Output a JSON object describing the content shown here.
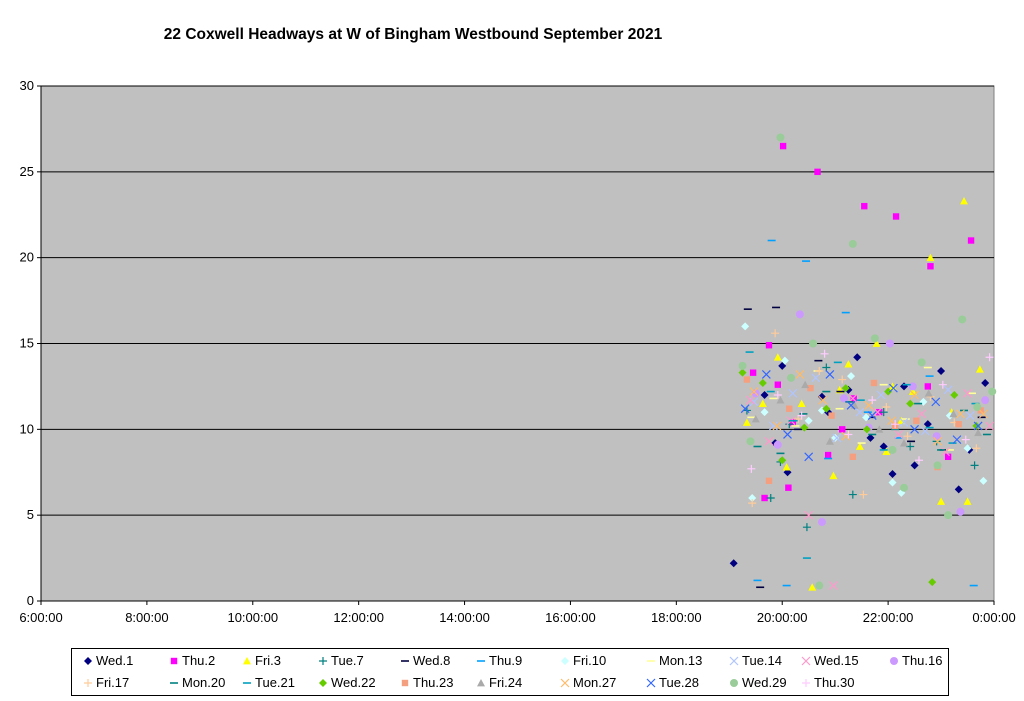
{
  "chart_data": {
    "type": "scatter",
    "title": "22 Coxwell Headways at W of Bingham Westbound September 2021",
    "xlabel": "",
    "ylabel": "",
    "x_unit": "time of day",
    "xlim": [
      "6:00:00",
      "0:00:00"
    ],
    "ylim": [
      0,
      30
    ],
    "x_ticks": [
      "6:00:00",
      "8:00:00",
      "10:00:00",
      "12:00:00",
      "14:00:00",
      "16:00:00",
      "18:00:00",
      "20:00:00",
      "22:00:00",
      "0:00:00"
    ],
    "y_ticks": [
      "0",
      "5",
      "10",
      "15",
      "20",
      "25",
      "30"
    ],
    "grid": "horizontal major gridlines",
    "plot_background": "#c0c0c0",
    "legend_position": "bottom",
    "series": [
      {
        "name": "Wed.1",
        "marker": "diamond",
        "color": "#000080",
        "x": [
          "19:05",
          "19:40",
          "19:52",
          "20:00",
          "20:06",
          "20:45",
          "20:52",
          "21:15",
          "21:25",
          "21:40",
          "21:55",
          "22:05",
          "22:18",
          "22:30",
          "22:45",
          "23:00",
          "23:20",
          "23:32",
          "23:50"
        ],
        "y": [
          2.2,
          12.0,
          9.2,
          13.7,
          7.5,
          11.9,
          11.0,
          12.3,
          14.2,
          9.5,
          9.0,
          7.4,
          12.5,
          7.9,
          10.3,
          13.4,
          6.5,
          8.8,
          12.7
        ]
      },
      {
        "name": "Thu.2",
        "marker": "square",
        "color": "#ff00ff",
        "x": [
          "19:27",
          "19:40",
          "19:45",
          "19:55",
          "20:01",
          "20:07",
          "20:12",
          "20:40",
          "20:52",
          "21:08",
          "21:21",
          "21:33",
          "21:50",
          "22:09",
          "22:45",
          "22:48",
          "23:08",
          "23:34"
        ],
        "y": [
          13.3,
          6.0,
          14.9,
          12.6,
          26.5,
          6.6,
          10.4,
          25.0,
          8.5,
          10.0,
          11.8,
          23.0,
          11.0,
          22.4,
          12.5,
          19.5,
          8.4,
          21.0
        ]
      },
      {
        "name": "Fri.3",
        "marker": "triangle",
        "color": "#ffff00",
        "x": [
          "19:20",
          "19:38",
          "19:55",
          "20:05",
          "20:22",
          "20:34",
          "20:58",
          "21:05",
          "21:15",
          "21:28",
          "21:47",
          "21:58",
          "22:05",
          "22:15",
          "22:28",
          "22:48",
          "23:00",
          "23:12",
          "23:26",
          "23:30",
          "23:44"
        ],
        "y": [
          10.4,
          11.5,
          14.2,
          7.8,
          11.5,
          0.8,
          7.3,
          12.3,
          13.8,
          9.0,
          15.0,
          8.7,
          12.5,
          10.5,
          12.2,
          20.0,
          5.8,
          11.0,
          23.3,
          5.8,
          13.5
        ]
      },
      {
        "name": "Tue.7",
        "marker": "plus",
        "color": "#008080",
        "x": [
          "19:20",
          "19:47",
          "19:58",
          "20:08",
          "20:28",
          "20:50",
          "21:20",
          "21:55",
          "22:25",
          "22:55",
          "23:38"
        ],
        "y": [
          11.1,
          6.0,
          8.1,
          10.3,
          4.3,
          13.6,
          6.2,
          11.0,
          9.0,
          9.3,
          7.9
        ]
      },
      {
        "name": "Wed.8",
        "marker": "dash",
        "color": "#000040",
        "x": [
          "19:21",
          "19:35",
          "19:53",
          "20:18",
          "20:41",
          "21:06",
          "21:41",
          "22:26",
          "23:03",
          "23:46"
        ],
        "y": [
          17.0,
          0.8,
          17.1,
          10.0,
          14.0,
          12.2,
          10.7,
          9.3,
          8.8,
          10.7
        ]
      },
      {
        "name": "Thu.9",
        "marker": "dash",
        "color": "#00a0ff",
        "x": [
          "19:32",
          "19:48",
          "20:05",
          "20:27",
          "20:52",
          "21:12",
          "21:37",
          "22:12",
          "22:47",
          "23:37"
        ],
        "y": [
          1.2,
          21.0,
          0.9,
          19.8,
          8.3,
          16.8,
          11.0,
          9.5,
          13.1,
          0.9
        ]
      },
      {
        "name": "Fri.10",
        "marker": "diamond",
        "color": "#ccffff",
        "x": [
          "19:18",
          "19:26",
          "19:40",
          "20:03",
          "20:30",
          "20:45",
          "21:00",
          "21:18",
          "21:35",
          "22:05",
          "22:15",
          "22:40",
          "23:10",
          "23:30",
          "23:48"
        ],
        "y": [
          16.0,
          6.0,
          11.0,
          14.0,
          10.5,
          11.1,
          9.5,
          13.1,
          10.7,
          6.9,
          6.3,
          11.6,
          10.8,
          8.9,
          7.0
        ]
      },
      {
        "name": "Mon.13",
        "marker": "dash",
        "color": "#ffff99",
        "x": [
          "19:25",
          "19:50",
          "20:15",
          "20:40",
          "21:05",
          "21:30",
          "21:55",
          "22:20",
          "22:45",
          "23:10",
          "23:35"
        ],
        "y": [
          10.7,
          11.8,
          10.2,
          13.4,
          11.2,
          9.2,
          12.6,
          10.6,
          13.6,
          8.8,
          12.1
        ]
      },
      {
        "name": "Tue.14",
        "marker": "x",
        "color": "#b0c4ff",
        "x": [
          "19:28",
          "19:50",
          "20:12",
          "20:38",
          "21:02",
          "21:28",
          "21:52",
          "22:18",
          "22:42",
          "23:08",
          "23:33"
        ],
        "y": [
          11.6,
          10.2,
          12.1,
          13.0,
          9.5,
          11.0,
          12.0,
          10.4,
          9.9,
          12.3,
          10.8
        ]
      },
      {
        "name": "Wed.15",
        "marker": "x",
        "color": "#ff99cc",
        "x": [
          "19:24",
          "19:45",
          "20:10",
          "20:30",
          "20:58",
          "21:20",
          "21:48",
          "22:12",
          "22:38",
          "23:05",
          "23:30",
          "23:55"
        ],
        "y": [
          11.7,
          9.3,
          10.5,
          5.0,
          0.9,
          11.8,
          11.0,
          9.7,
          10.9,
          8.7,
          12.1,
          10.2
        ]
      },
      {
        "name": "Thu.16",
        "marker": "circle",
        "color": "#cc99ff",
        "x": [
          "19:30",
          "19:55",
          "20:20",
          "20:45",
          "21:10",
          "21:38",
          "22:02",
          "22:28",
          "22:55",
          "23:22",
          "23:50"
        ],
        "y": [
          12.1,
          9.1,
          16.7,
          4.6,
          11.8,
          10.1,
          15.0,
          12.5,
          9.6,
          5.2,
          11.7
        ]
      },
      {
        "name": "Fri.17",
        "marker": "plus",
        "color": "#ffcc99",
        "x": [
          "19:26",
          "19:52",
          "20:18",
          "20:42",
          "21:08",
          "21:32",
          "21:58",
          "22:22",
          "22:48",
          "23:15",
          "23:40"
        ],
        "y": [
          5.7,
          15.6,
          10.6,
          13.4,
          12.9,
          6.2,
          11.3,
          9.6,
          11.9,
          10.4,
          8.9
        ]
      },
      {
        "name": "Mon.20",
        "marker": "dash",
        "color": "#008080",
        "x": [
          "19:32",
          "19:58",
          "20:24",
          "20:50",
          "21:16",
          "21:42",
          "22:08",
          "22:34",
          "23:00",
          "23:26",
          "23:52"
        ],
        "y": [
          9.0,
          8.6,
          10.9,
          12.2,
          11.6,
          9.7,
          10.0,
          11.5,
          8.8,
          11.1,
          9.7
        ]
      },
      {
        "name": "Tue.21",
        "marker": "dash",
        "color": "#00a0c0",
        "x": [
          "19:23",
          "19:47",
          "20:13",
          "20:28",
          "21:03",
          "21:29",
          "21:55",
          "22:21",
          "22:47",
          "23:13",
          "23:39"
        ],
        "y": [
          14.5,
          12.2,
          10.5,
          2.5,
          13.9,
          11.7,
          8.8,
          12.6,
          10.1,
          9.2,
          11.5
        ]
      },
      {
        "name": "Wed.22",
        "marker": "diamond",
        "color": "#66cc00",
        "x": [
          "19:15",
          "19:38",
          "20:00",
          "20:25",
          "20:50",
          "21:12",
          "21:36",
          "22:00",
          "22:25",
          "22:50",
          "23:15",
          "23:40"
        ],
        "y": [
          13.3,
          12.7,
          8.2,
          10.1,
          11.2,
          12.4,
          10.0,
          12.2,
          11.5,
          1.1,
          12.0,
          10.2
        ]
      },
      {
        "name": "Thu.23",
        "marker": "square",
        "color": "#f4a080",
        "x": [
          "19:20",
          "19:45",
          "20:08",
          "20:32",
          "20:56",
          "21:20",
          "21:44",
          "22:08",
          "22:32",
          "22:56",
          "23:20",
          "23:45"
        ],
        "y": [
          12.9,
          7.0,
          11.2,
          12.4,
          10.8,
          8.4,
          12.7,
          10.2,
          10.5,
          7.8,
          10.3,
          11.1
        ]
      },
      {
        "name": "Fri.24",
        "marker": "triangle",
        "color": "#aaaaaa",
        "x": [
          "19:30",
          "19:58",
          "20:26",
          "20:54",
          "21:22",
          "21:50",
          "22:18",
          "22:46",
          "23:14",
          "23:42"
        ],
        "y": [
          10.6,
          11.7,
          12.6,
          9.3,
          11.4,
          10.0,
          9.2,
          12.1,
          10.9,
          9.8
        ]
      },
      {
        "name": "Mon.27",
        "marker": "x",
        "color": "#ffbb66",
        "x": [
          "19:28",
          "19:54",
          "20:20",
          "20:46",
          "21:12",
          "21:38",
          "22:04",
          "22:30",
          "22:56",
          "23:22",
          "23:48"
        ],
        "y": [
          12.2,
          10.2,
          13.2,
          11.7,
          9.6,
          11.4,
          10.5,
          12.0,
          9.3,
          10.9,
          10.9
        ]
      },
      {
        "name": "Tue.28",
        "marker": "x",
        "color": "#3366ff",
        "x": [
          "19:18",
          "19:42",
          "20:06",
          "20:30",
          "20:54",
          "21:18",
          "21:42",
          "22:06",
          "22:30",
          "22:54",
          "23:18",
          "23:42"
        ],
        "y": [
          11.2,
          13.2,
          9.7,
          8.4,
          13.2,
          11.4,
          10.8,
          12.4,
          10.0,
          11.6,
          9.4,
          10.2
        ]
      },
      {
        "name": "Wed.29",
        "marker": "circle",
        "color": "#99cc99",
        "x": [
          "19:15",
          "19:24",
          "19:58",
          "20:10",
          "20:35",
          "20:42",
          "21:20",
          "21:45",
          "22:05",
          "22:18",
          "22:38",
          "22:56",
          "23:08",
          "23:24",
          "23:41",
          "23:58"
        ],
        "y": [
          13.7,
          9.3,
          27.0,
          13.0,
          15.0,
          0.9,
          20.8,
          15.3,
          8.8,
          6.6,
          13.9,
          7.9,
          5.0,
          16.4,
          11.3,
          12.2
        ]
      },
      {
        "name": "Thu.30",
        "marker": "plus",
        "color": "#ffccff",
        "x": [
          "19:25",
          "19:55",
          "20:22",
          "20:48",
          "21:15",
          "21:42",
          "22:08",
          "22:35",
          "23:02",
          "23:28",
          "23:55"
        ],
        "y": [
          7.7,
          12.0,
          10.8,
          14.4,
          9.7,
          11.7,
          10.3,
          8.2,
          12.6,
          9.4,
          14.2
        ]
      }
    ]
  }
}
